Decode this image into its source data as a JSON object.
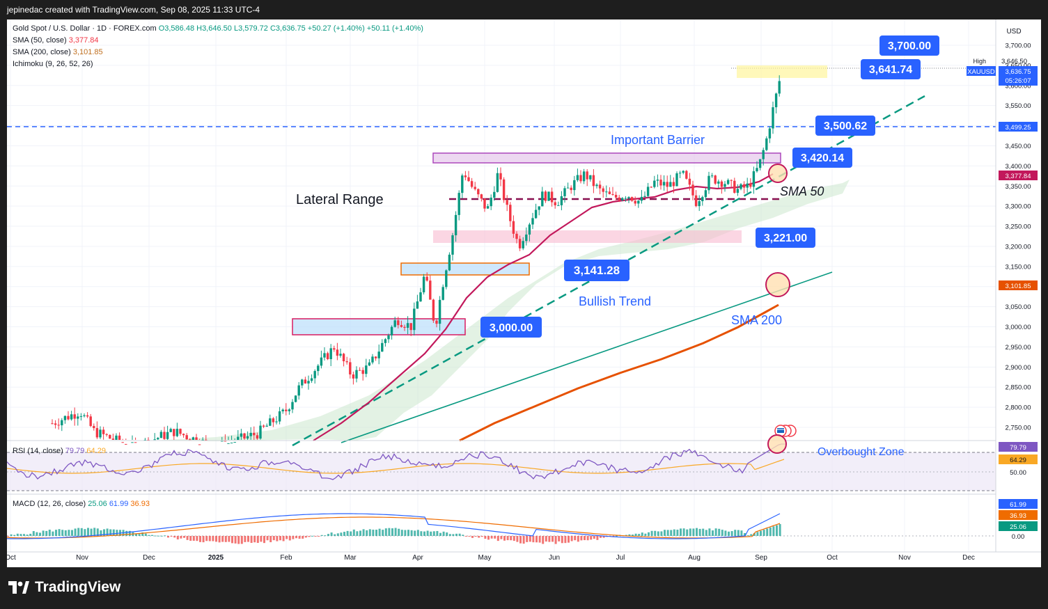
{
  "header": {
    "creator_text": "jepinedac created with TradingView.com, Sep 08, 2025 11:33 UTC-4"
  },
  "legend": {
    "symbol": "Gold Spot / U.S. Dollar · 1D · FOREX.com",
    "open": "O3,586.48",
    "high": "H3,646.50",
    "low": "L3,579.72",
    "close": "C3,636.75",
    "change": "+50.27 (+1.40%)",
    "change2": "+50.11 (+1.40%)",
    "sma50_label": "SMA (50, close)",
    "sma50_value": "3,377.84",
    "sma200_label": "SMA (200, close)",
    "sma200_value": "3,101.85",
    "ichimoku_label": "Ichimoku (9, 26, 52, 26)",
    "rsi_label": "RSI (14, close)",
    "rsi_value": "79.79",
    "rsi_ma": "64.29",
    "macd_label": "MACD (12, 26, close)",
    "macd_hist": "25.06",
    "macd_line": "61.99",
    "macd_signal": "36.93"
  },
  "price_axis": {
    "currency": "USD",
    "ticks": [
      "3,700.00",
      "3,650.00",
      "3,600.00",
      "3,550.00",
      "3,500.00",
      "3,450.00",
      "3,400.00",
      "3,350.00",
      "3,300.00",
      "3,250.00",
      "3,200.00",
      "3,150.00",
      "3,100.00",
      "3,050.00",
      "3,000.00",
      "2,950.00",
      "2,900.00",
      "2,850.00",
      "2,800.00",
      "2,750.00"
    ],
    "high_tag": "High",
    "high_value": "3,646.50",
    "symbol_tag": "XAUUSD",
    "last_price": "3,636.75",
    "countdown": "05:26:07",
    "dashed_level": "3,499.25",
    "sma50_tag": "3,377.84",
    "sma200_tag": "3,101.85",
    "rsi_tags": [
      "79.79",
      "64.29",
      "50.00"
    ],
    "macd_tags": [
      "61.99",
      "36.93",
      "25.06",
      "0.00"
    ]
  },
  "time_axis": {
    "labels": [
      "Oct",
      "Nov",
      "Dec",
      "2025",
      "Feb",
      "Mar",
      "Apr",
      "May",
      "Jun",
      "Jul",
      "Aug",
      "Sep",
      "Oct",
      "Nov",
      "Dec"
    ]
  },
  "annotations": {
    "levels": [
      "3,700.00",
      "3,641.74",
      "3,500.62",
      "3,420.14",
      "3,221.00",
      "3,141.28",
      "3,000.00"
    ],
    "important_barrier": "Important Barrier",
    "lateral_range": "Lateral Range",
    "bullish_trend": "Bullish Trend",
    "sma50": "SMA 50",
    "sma200": "SMA 200",
    "overbought": "Overbought Zone"
  },
  "footer": {
    "brand": "TradingView"
  },
  "colors": {
    "up": "#089981",
    "down": "#f23645",
    "sma50": "#c2185b",
    "sma200": "#e65100",
    "label_bg": "#2962ff",
    "trend": "#089981"
  },
  "chart_data": {
    "type": "candlestick",
    "series": [
      {
        "name": "Gold Spot / U.S. Dollar",
        "last": 3636.75,
        "open": 3586.48,
        "high": 3646.5,
        "low": 3579.72
      },
      {
        "name": "SMA (50, close)",
        "last": 3377.84
      },
      {
        "name": "SMA (200, close)",
        "last": 3101.85
      }
    ],
    "ylim": [
      2710,
      3740
    ],
    "rsi": {
      "value": 79.79,
      "ma": 64.29,
      "levels": [
        70,
        50,
        30
      ]
    },
    "macd": {
      "line": 61.99,
      "signal": 36.93,
      "hist": 25.06
    }
  }
}
